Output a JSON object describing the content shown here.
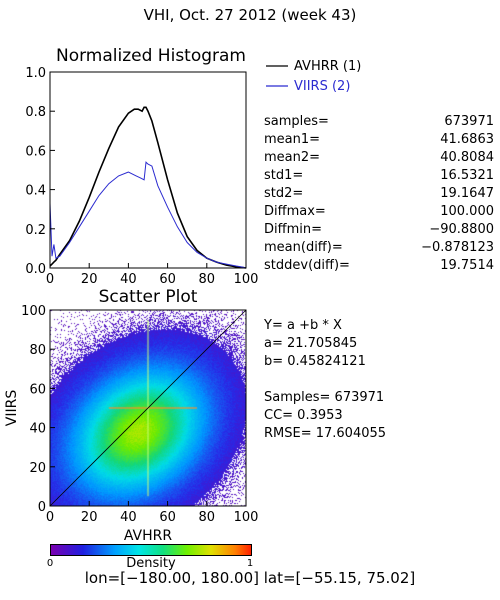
{
  "page_title": "VHI,  Oct. 27 2012 (week 43)",
  "histogram": {
    "title": "Normalized Histogram",
    "legend": [
      {
        "label": "AVHRR (1)",
        "color": "#000000"
      },
      {
        "label": "VIIRS (2)",
        "color": "#2b2bd0"
      }
    ]
  },
  "stats": [
    {
      "label": "samples=",
      "value": "673971"
    },
    {
      "label": "mean1=",
      "value": "41.6863"
    },
    {
      "label": "mean2=",
      "value": "40.8084"
    },
    {
      "label": "std1=",
      "value": "16.5321"
    },
    {
      "label": "std2=",
      "value": "19.1647"
    },
    {
      "label": "Diffmax=",
      "value": "100.000"
    },
    {
      "label": "Diffmin=",
      "value": "−90.8800"
    },
    {
      "label": "mean(diff)=",
      "value": "−0.878123"
    },
    {
      "label": "stddev(diff)=",
      "value": "19.7514"
    }
  ],
  "scatter": {
    "title": "Scatter Plot",
    "regression": {
      "equation": "Y= a +b * X",
      "a": "a= 21.705845",
      "b": "b= 0.45824121"
    },
    "metrics": {
      "samples": "Samples= 673971",
      "cc": "CC=  0.3953",
      "rmse": "RMSE= 17.604055"
    }
  },
  "colorbar": {
    "min_label": "0",
    "max_label": "1",
    "title": "Density"
  },
  "footer": "lon=[−180.00, 180.00] lat=[−55.15, 75.02]",
  "chart_data": [
    {
      "type": "line",
      "title": "Normalized Histogram",
      "xlim": [
        0,
        100
      ],
      "ylim": [
        0,
        1.0
      ],
      "xticks": [
        0,
        20,
        40,
        60,
        80,
        100
      ],
      "yticks": [
        0.0,
        0.2,
        0.4,
        0.6,
        0.8,
        1.0
      ],
      "series": [
        {
          "name": "AVHRR (1)",
          "color": "#000000",
          "x": [
            0,
            1,
            2,
            3,
            5,
            10,
            15,
            20,
            25,
            30,
            35,
            40,
            43,
            45,
            47,
            48,
            49,
            50,
            52,
            55,
            60,
            65,
            70,
            75,
            80,
            85,
            90,
            95,
            98,
            100
          ],
          "y": [
            0.01,
            0.02,
            0.03,
            0.04,
            0.07,
            0.14,
            0.24,
            0.36,
            0.49,
            0.61,
            0.72,
            0.79,
            0.81,
            0.81,
            0.8,
            0.82,
            0.82,
            0.8,
            0.75,
            0.64,
            0.45,
            0.28,
            0.16,
            0.09,
            0.05,
            0.03,
            0.015,
            0.006,
            0.003,
            0.0
          ]
        },
        {
          "name": "VIIRS (2)",
          "color": "#2b2bd0",
          "x": [
            0,
            1,
            2,
            3,
            5,
            10,
            15,
            20,
            25,
            30,
            35,
            40,
            44,
            46,
            48,
            49,
            50,
            52,
            55,
            60,
            65,
            70,
            75,
            80,
            85,
            90,
            95,
            98,
            100
          ],
          "y": [
            0.33,
            0.06,
            0.12,
            0.05,
            0.06,
            0.13,
            0.21,
            0.29,
            0.37,
            0.43,
            0.47,
            0.49,
            0.47,
            0.46,
            0.45,
            0.54,
            0.53,
            0.52,
            0.42,
            0.31,
            0.21,
            0.13,
            0.08,
            0.05,
            0.03,
            0.02,
            0.01,
            0.005,
            0.0
          ]
        }
      ]
    },
    {
      "type": "heatmap",
      "title": "Scatter Plot",
      "xlabel": "AVHRR",
      "ylabel": "VIIRS",
      "xlim": [
        0,
        100
      ],
      "ylim": [
        0,
        100
      ],
      "xticks": [
        0,
        20,
        40,
        60,
        80,
        100
      ],
      "yticks": [
        0,
        20,
        40,
        60,
        80,
        100
      ],
      "density_center": [
        45,
        38
      ],
      "regression_line": {
        "a": 21.705845,
        "b": 0.45824121
      },
      "reference_line": "y = x",
      "colorbar": {
        "range": [
          0,
          1
        ],
        "label": "Density"
      }
    }
  ]
}
